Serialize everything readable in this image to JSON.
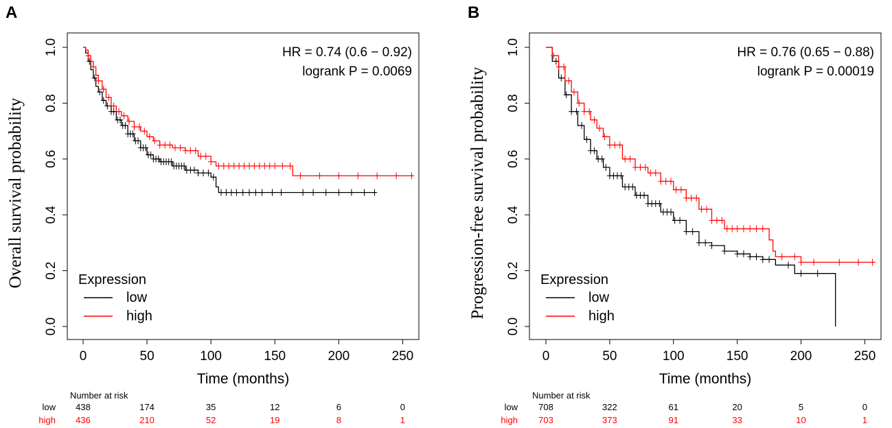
{
  "figure": {
    "colors": {
      "low": "#000000",
      "high": "#ff0000",
      "axis": "#000000"
    }
  },
  "chart_data": [
    {
      "type": "line",
      "panel_label": "A",
      "title": "",
      "xlabel": "Time (months)",
      "ylabel": "Overall survival probability",
      "xlim": [
        0,
        260
      ],
      "ylim": [
        0,
        1
      ],
      "xticks": [
        0,
        50,
        100,
        150,
        200,
        250
      ],
      "yticks": [
        0.0,
        0.2,
        0.4,
        0.6,
        0.8,
        1.0
      ],
      "grid": false,
      "stats": {
        "hr": "HR = 0.74 (0.6 − 0.92)",
        "logrank": "logrank P = 0.0069"
      },
      "legend": {
        "title": "Expression",
        "position": "bottom-left",
        "items": [
          "low",
          "high"
        ]
      },
      "series": [
        {
          "name": "low",
          "color": "#000000",
          "x": [
            0,
            2,
            4,
            6,
            8,
            10,
            12,
            15,
            18,
            22,
            26,
            30,
            35,
            40,
            45,
            50,
            55,
            60,
            70,
            80,
            90,
            100,
            104,
            106,
            110,
            150,
            200,
            229
          ],
          "y": [
            1.0,
            0.98,
            0.95,
            0.92,
            0.89,
            0.86,
            0.84,
            0.81,
            0.79,
            0.77,
            0.74,
            0.72,
            0.69,
            0.665,
            0.64,
            0.615,
            0.6,
            0.59,
            0.575,
            0.56,
            0.55,
            0.535,
            0.5,
            0.48,
            0.48,
            0.48,
            0.48,
            0.48
          ],
          "censor_x": [
            5,
            9,
            13,
            16,
            19,
            22,
            24,
            27,
            29,
            31,
            33,
            35,
            37,
            39,
            41,
            43,
            45,
            47,
            49,
            51,
            53,
            55,
            57,
            59,
            61,
            63,
            65,
            67,
            69,
            71,
            73,
            75,
            77,
            79,
            81,
            84,
            87,
            90,
            94,
            98,
            102,
            108,
            112,
            116,
            120,
            125,
            130,
            135,
            140,
            148,
            155,
            172,
            180,
            190,
            200,
            210,
            220,
            228
          ]
        },
        {
          "name": "high",
          "color": "#ff0000",
          "x": [
            0,
            2,
            4,
            6,
            8,
            10,
            12,
            15,
            18,
            22,
            26,
            30,
            35,
            40,
            45,
            50,
            55,
            60,
            70,
            80,
            90,
            100,
            104,
            110,
            150,
            164,
            170,
            200,
            258
          ],
          "y": [
            1.0,
            0.99,
            0.97,
            0.95,
            0.93,
            0.9,
            0.88,
            0.85,
            0.82,
            0.79,
            0.77,
            0.755,
            0.735,
            0.715,
            0.7,
            0.68,
            0.665,
            0.65,
            0.64,
            0.63,
            0.61,
            0.59,
            0.575,
            0.575,
            0.575,
            0.54,
            0.54,
            0.54,
            0.54
          ],
          "censor_x": [
            4,
            8,
            12,
            16,
            20,
            24,
            28,
            32,
            36,
            40,
            44,
            48,
            52,
            56,
            60,
            64,
            68,
            72,
            76,
            80,
            84,
            88,
            92,
            96,
            100,
            106,
            110,
            114,
            118,
            122,
            126,
            130,
            134,
            138,
            142,
            146,
            150,
            156,
            162,
            170,
            185,
            200,
            215,
            230,
            245,
            257
          ]
        }
      ],
      "risk_table": {
        "title": "Number at risk",
        "times": [
          0,
          50,
          100,
          150,
          200,
          250
        ],
        "rows": [
          {
            "label": "low",
            "values": [
              "438",
              "174",
              "35",
              "12",
              "6",
              "0"
            ]
          },
          {
            "label": "high",
            "values": [
              "436",
              "210",
              "52",
              "19",
              "8",
              "1"
            ]
          }
        ]
      }
    },
    {
      "type": "line",
      "panel_label": "B",
      "title": "",
      "xlabel": "Time (months)",
      "ylabel": "Progression-free survival probability",
      "xlim": [
        0,
        260
      ],
      "ylim": [
        0,
        1
      ],
      "xticks": [
        0,
        50,
        100,
        150,
        200,
        250
      ],
      "yticks": [
        0.0,
        0.2,
        0.4,
        0.6,
        0.8,
        1.0
      ],
      "grid": false,
      "stats": {
        "hr": "HR = 0.76 (0.65 − 0.88)",
        "logrank": "logrank P = 0.00019"
      },
      "legend": {
        "title": "Expression",
        "position": "bottom-left",
        "items": [
          "low",
          "high"
        ]
      },
      "series": [
        {
          "name": "low",
          "color": "#000000",
          "x": [
            0,
            5,
            10,
            15,
            20,
            25,
            30,
            35,
            40,
            45,
            50,
            60,
            70,
            80,
            90,
            100,
            110,
            120,
            130,
            140,
            150,
            160,
            170,
            180,
            193,
            195,
            200,
            227,
            227
          ],
          "y": [
            1.0,
            0.95,
            0.89,
            0.83,
            0.77,
            0.72,
            0.67,
            0.63,
            0.6,
            0.57,
            0.54,
            0.5,
            0.47,
            0.44,
            0.41,
            0.38,
            0.34,
            0.3,
            0.29,
            0.27,
            0.26,
            0.25,
            0.24,
            0.22,
            0.22,
            0.19,
            0.19,
            0.19,
            0.0
          ],
          "censor_x": [
            8,
            12,
            16,
            20,
            24,
            28,
            32,
            35,
            38,
            41,
            44,
            47,
            50,
            53,
            56,
            59,
            62,
            65,
            68,
            71,
            74,
            77,
            80,
            83,
            86,
            89,
            92,
            95,
            98,
            101,
            105,
            110,
            115,
            120,
            125,
            130,
            140,
            150,
            155,
            160,
            165,
            170,
            175,
            190,
            200,
            213
          ]
        },
        {
          "name": "high",
          "color": "#ff0000",
          "x": [
            0,
            5,
            10,
            15,
            20,
            25,
            30,
            35,
            40,
            45,
            50,
            60,
            70,
            80,
            90,
            100,
            110,
            120,
            130,
            140,
            150,
            160,
            170,
            175,
            178,
            180,
            190,
            200,
            258
          ],
          "y": [
            1.0,
            0.97,
            0.93,
            0.88,
            0.84,
            0.8,
            0.77,
            0.74,
            0.71,
            0.68,
            0.65,
            0.6,
            0.57,
            0.55,
            0.52,
            0.49,
            0.46,
            0.42,
            0.38,
            0.35,
            0.35,
            0.35,
            0.35,
            0.31,
            0.27,
            0.25,
            0.25,
            0.23,
            0.23
          ],
          "censor_x": [
            6,
            10,
            14,
            18,
            22,
            26,
            30,
            34,
            38,
            42,
            46,
            50,
            54,
            58,
            62,
            66,
            70,
            74,
            78,
            82,
            86,
            90,
            94,
            98,
            102,
            106,
            110,
            114,
            118,
            122,
            126,
            130,
            134,
            138,
            142,
            146,
            150,
            155,
            160,
            165,
            170,
            185,
            195,
            200,
            210,
            230,
            245,
            256
          ]
        }
      ],
      "risk_table": {
        "title": "Number at risk",
        "times": [
          0,
          50,
          100,
          150,
          200,
          250
        ],
        "rows": [
          {
            "label": "low",
            "values": [
              "708",
              "322",
              "61",
              "20",
              "5",
              "0"
            ]
          },
          {
            "label": "high",
            "values": [
              "703",
              "373",
              "91",
              "33",
              "10",
              "1"
            ]
          }
        ]
      }
    }
  ]
}
